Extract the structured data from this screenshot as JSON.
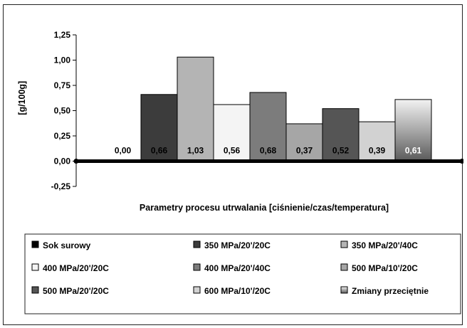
{
  "chart_data": {
    "type": "bar",
    "title": "",
    "xlabel": "Parametry procesu utrwalania [ciśnienie/czas/temperatura]",
    "ylabel": "[g/100g]",
    "ylim": [
      -0.25,
      1.25
    ],
    "yticks": [
      "1,25",
      "1,00",
      "0,75",
      "0,50",
      "0,25",
      "0,00",
      "-0,25"
    ],
    "ytick_values": [
      1.25,
      1.0,
      0.75,
      0.5,
      0.25,
      0.0,
      -0.25
    ],
    "grid": false,
    "legend_position": "bottom",
    "series": [
      {
        "name": "Sok surowy",
        "value": 0.0,
        "label": "0,00",
        "color": "#000000",
        "label_color": "#000000"
      },
      {
        "name": "350 MPa/20'/20C",
        "value": 0.66,
        "label": "0,66",
        "color": "#3c3c3c",
        "label_color": "#000000"
      },
      {
        "name": "350 MPa/20'/40C",
        "value": 1.03,
        "label": "1,03",
        "color": "#b4b4b4",
        "label_color": "#000000"
      },
      {
        "name": "400 MPa/20'/20C",
        "value": 0.56,
        "label": "0,56",
        "color": "#f4f4f4",
        "label_color": "#000000"
      },
      {
        "name": "400 MPa/20'/40C",
        "value": 0.68,
        "label": "0,68",
        "color": "#7c7c7c",
        "label_color": "#000000"
      },
      {
        "name": "500 MPa/10'/20C",
        "value": 0.37,
        "label": "0,37",
        "color": "#a6a6a6",
        "label_color": "#000000"
      },
      {
        "name": "500 MPa/20'/20C",
        "value": 0.52,
        "label": "0,52",
        "color": "#555555",
        "label_color": "#000000"
      },
      {
        "name": "600 MPa/10'/20C",
        "value": 0.39,
        "label": "0,39",
        "color": "#d2d2d2",
        "label_color": "#000000"
      },
      {
        "name": "Zmiany przeciętnie",
        "value": 0.61,
        "label": "0,61",
        "color": "#9c9c9c",
        "label_color": "#ffffff"
      }
    ]
  }
}
